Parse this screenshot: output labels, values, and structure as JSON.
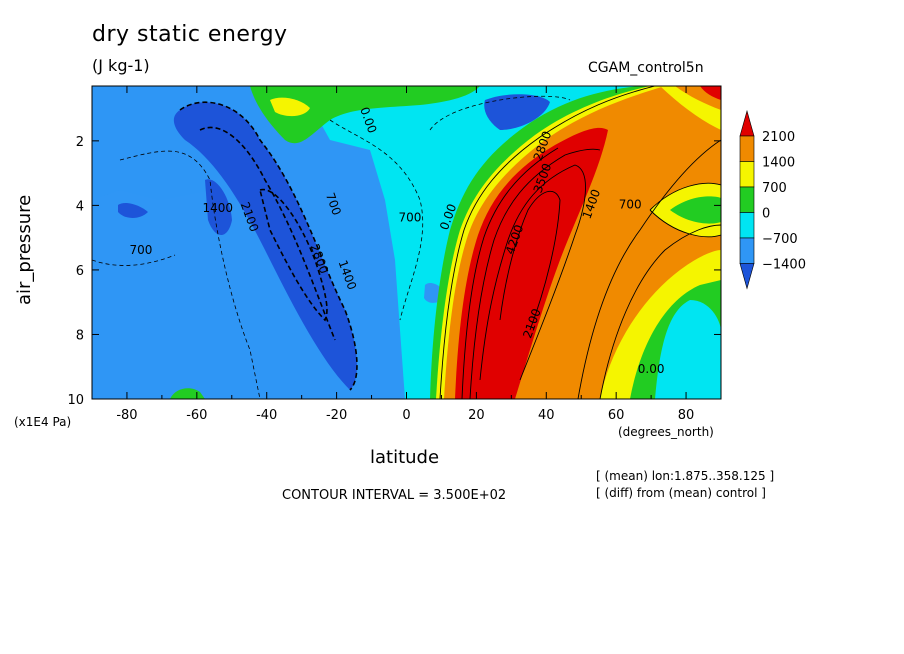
{
  "chart_data": {
    "type": "heatmap",
    "title": "dry static energy",
    "units": "(J kg-1)",
    "dataset": "CGAM_control5n",
    "xlabel": "latitude",
    "x_unit": "(degrees_north)",
    "ylabel": "air_pressure",
    "y_unit": "(x1E4 Pa)",
    "x_ticks": [
      "-80",
      "-60",
      "-40",
      "-20",
      "0",
      "20",
      "40",
      "60",
      "80"
    ],
    "x_tick_values": [
      -80,
      -60,
      -40,
      -20,
      0,
      20,
      40,
      60,
      80
    ],
    "y_ticks": [
      "2",
      "4",
      "6",
      "8",
      "10"
    ],
    "y_tick_values": [
      2,
      4,
      6,
      8,
      10
    ],
    "xlim": [
      -90,
      90
    ],
    "ylim": [
      10,
      0.3
    ],
    "contour_interval": "CONTOUR INTERVAL = 3.500E+02",
    "notes": [
      "[ (mean) lon:1.875..358.125 ]",
      "[ (diff) from (mean) control ]"
    ],
    "colorbar": {
      "labels": [
        "2100",
        "1400",
        "700",
        "0",
        "−700",
        "−1400"
      ],
      "levels": [
        2100,
        1400,
        700,
        0,
        -700,
        -1400
      ],
      "colors": [
        "#e00000",
        "#f08a00",
        "#f5f500",
        "#22cc22",
        "#00e5f2",
        "#2f96f5",
        "#1d54d9"
      ]
    },
    "contour_labels": [
      {
        "text": "0.00",
        "x": -12,
        "y": 1.4
      },
      {
        "text": "2100",
        "x": -46,
        "y": 4.4
      },
      {
        "text": "2800",
        "x": -26,
        "y": 5.7
      },
      {
        "text": "1400",
        "x": -54,
        "y": 4.2
      },
      {
        "text": "1400",
        "x": -18,
        "y": 6.2
      },
      {
        "text": "700",
        "x": -22,
        "y": 4.0
      },
      {
        "text": "700",
        "x": 1,
        "y": 4.5
      },
      {
        "text": "700",
        "x": -76,
        "y": 5.5
      },
      {
        "text": "0.00",
        "x": 13,
        "y": 4.4
      },
      {
        "text": "4200",
        "x": 32,
        "y": 5.1
      },
      {
        "text": "3500",
        "x": 40,
        "y": 3.2
      },
      {
        "text": "2800",
        "x": 40,
        "y": 2.2
      },
      {
        "text": "1400",
        "x": 54,
        "y": 4.0
      },
      {
        "text": "700",
        "x": 64,
        "y": 4.1
      },
      {
        "text": "2100",
        "x": 37,
        "y": 7.7
      },
      {
        "text": "0.00",
        "x": 70,
        "y": 9.2
      }
    ]
  }
}
